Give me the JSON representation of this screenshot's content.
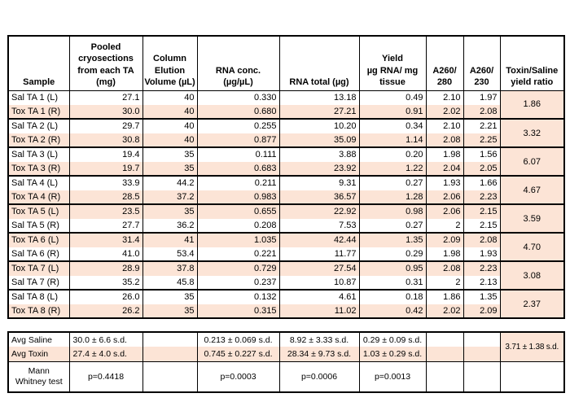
{
  "colors": {
    "highlight_fill": "#fce4d6",
    "border": "#000000",
    "text": "#000000"
  },
  "header_display": [
    "Sample",
    "Pooled\ncryosections\nfrom each TA\n(mg)",
    "Column\nElution\nVolume (µL)",
    "RNA conc.\n(µg/µL)",
    "RNA total (µg)",
    "Yield\nµg RNA/ mg\ntissue",
    "A260/\n280",
    "A260/\n230",
    "Toxin/Saline\nyield ratio"
  ],
  "chart_data": {
    "type": "table",
    "columns": [
      "Sample",
      "Pooled cryosections from each TA (mg)",
      "Column Elution Volume (µL)",
      "RNA conc. (µg/µL)",
      "RNA total (µg)",
      "Yield µg RNA/ mg tissue",
      "A260/280",
      "A260/230",
      "Toxin/Saline yield ratio"
    ],
    "pairs": [
      {
        "ratio": "1.86",
        "highlight": [
          false,
          true
        ],
        "rows": [
          [
            "Sal TA 1 (L)",
            "27.1",
            "40",
            "0.330",
            "13.18",
            "0.49",
            "2.10",
            "1.97"
          ],
          [
            "Tox TA 1 (R)",
            "30.0",
            "40",
            "0.680",
            "27.21",
            "0.91",
            "2.02",
            "2.08"
          ]
        ]
      },
      {
        "ratio": "3.32",
        "highlight": [
          false,
          true
        ],
        "rows": [
          [
            "Sal TA 2 (L)",
            "29.7",
            "40",
            "0.255",
            "10.20",
            "0.34",
            "2.10",
            "2.21"
          ],
          [
            "Tox TA 2 (R)",
            "30.8",
            "40",
            "0.877",
            "35.09",
            "1.14",
            "2.08",
            "2.25"
          ]
        ]
      },
      {
        "ratio": "6.07",
        "highlight": [
          false,
          true
        ],
        "rows": [
          [
            "Sal TA 3 (L)",
            "19.4",
            "35",
            "0.111",
            "3.88",
            "0.20",
            "1.98",
            "1.56"
          ],
          [
            "Tox TA 3 (R)",
            "19.7",
            "35",
            "0.683",
            "23.92",
            "1.22",
            "2.04",
            "2.05"
          ]
        ]
      },
      {
        "ratio": "4.67",
        "highlight": [
          false,
          true
        ],
        "rows": [
          [
            "Sal TA 4 (L)",
            "33.9",
            "44.2",
            "0.211",
            "9.31",
            "0.27",
            "1.93",
            "1.66"
          ],
          [
            "Tox TA 4 (R)",
            "28.5",
            "37.2",
            "0.983",
            "36.57",
            "1.28",
            "2.06",
            "2.23"
          ]
        ]
      },
      {
        "ratio": "3.59",
        "highlight": [
          true,
          false
        ],
        "rows": [
          [
            "Tox TA 5 (L)",
            "23.5",
            "35",
            "0.655",
            "22.92",
            "0.98",
            "2.06",
            "2.15"
          ],
          [
            "Sal TA 5 (R)",
            "27.7",
            "36.2",
            "0.208",
            "7.53",
            "0.27",
            "2",
            "2.15"
          ]
        ]
      },
      {
        "ratio": "4.70",
        "highlight": [
          true,
          false
        ],
        "rows": [
          [
            "Tox TA 6 (L)",
            "31.4",
            "41",
            "1.035",
            "42.44",
            "1.35",
            "2.09",
            "2.08"
          ],
          [
            "Sal TA 6 (R)",
            "41.0",
            "53.4",
            "0.221",
            "11.77",
            "0.29",
            "1.98",
            "1.93"
          ]
        ]
      },
      {
        "ratio": "3.08",
        "highlight": [
          true,
          false
        ],
        "rows": [
          [
            "Tox TA 7 (L)",
            "28.9",
            "37.8",
            "0.729",
            "27.54",
            "0.95",
            "2.08",
            "2.23"
          ],
          [
            "Sal TA 7 (R)",
            "35.2",
            "45.8",
            "0.237",
            "10.87",
            "0.31",
            "2",
            "2.13"
          ]
        ]
      },
      {
        "ratio": "2.37",
        "highlight": [
          false,
          true
        ],
        "rows": [
          [
            "Sal TA 8 (L)",
            "26.0",
            "35",
            "0.132",
            "4.61",
            "0.18",
            "1.86",
            "1.35"
          ],
          [
            "Tox TA 8 (R)",
            "26.2",
            "35",
            "0.315",
            "11.02",
            "0.42",
            "2.02",
            "2.09"
          ]
        ]
      }
    ],
    "summary": {
      "avg_rows": [
        {
          "label": "Avg Saline",
          "highlight": false,
          "cells": [
            "30.0 ± 6.6 s.d.",
            "",
            "0.213 ± 0.069 s.d.",
            "8.92 ± 3.33 s.d.",
            "0.29 ± 0.09 s.d.",
            "",
            ""
          ]
        },
        {
          "label": "Avg Toxin",
          "highlight": true,
          "cells": [
            "27.4 ± 4.0 s.d.",
            "",
            "0.745 ± 0.227 s.d.",
            "28.34 ± 9.73 s.d.",
            "1.03 ± 0.29 s.d.",
            "",
            ""
          ]
        }
      ],
      "ratio": "3.71 ± 1.38 s.d.",
      "mann_row": {
        "label": "Mann Whitney test",
        "label_display": "Mann\nWhitney test",
        "cells": [
          "p=0.4418",
          "",
          "p=0.0003",
          "p=0.0006",
          "p=0.0013",
          "",
          "",
          ""
        ]
      }
    }
  }
}
